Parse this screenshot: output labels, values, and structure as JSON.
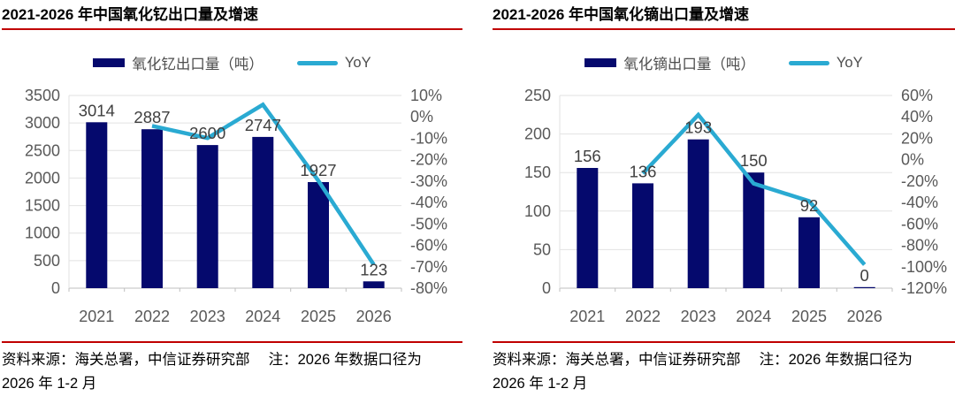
{
  "colors": {
    "bar_navy": "#05096d",
    "line_cyan": "#2aaad2",
    "accent_red": "#c00000",
    "grid": "#e2e2e2",
    "axis": "#bfbfbf",
    "tick_text": "#595959",
    "data_label_text": "#3f3f3f"
  },
  "panels": [
    {
      "title": "2021-2026 年中国氧化钇出口量及增速",
      "legend": {
        "bar_label": "氧化钇出口量（吨）",
        "line_label": "YoY"
      },
      "source_line1": "资料来源：海关总署，中信证券研究部　 注：2026 年数据口径为",
      "source_line2": "2026 年 1-2 月"
    },
    {
      "title": "2021-2026 年中国氧化镝出口量及增速",
      "legend": {
        "bar_label": "氧化镝出口量（吨）",
        "line_label": "YoY"
      },
      "source_line1": "资料来源：海关总署，中信证券研究部　 注：2026 年数据口径为",
      "source_line2": "2026 年 1-2 月"
    }
  ],
  "chart_data": [
    {
      "type": "bar+line",
      "title": "2021-2026 年中国氧化钇出口量及增速",
      "categories": [
        "2021",
        "2022",
        "2023",
        "2024",
        "2025",
        "2026"
      ],
      "series": [
        {
          "name": "氧化钇出口量（吨）",
          "type": "bar",
          "axis": "left",
          "values": [
            3014,
            2887,
            2600,
            2747,
            1927,
            123
          ],
          "data_labels": true
        },
        {
          "name": "YoY",
          "type": "line",
          "axis": "right",
          "unit": "%",
          "values": [
            null,
            -4.2,
            -9.9,
            5.7,
            -29.8,
            -69
          ]
        }
      ],
      "left_axis": {
        "min": 0,
        "max": 3500,
        "step": 500
      },
      "right_axis": {
        "min": -80,
        "max": 10,
        "step": 10,
        "unit": "%"
      },
      "grid": true,
      "legend_position": "top"
    },
    {
      "type": "bar+line",
      "title": "2021-2026 年中国氧化镝出口量及增速",
      "categories": [
        "2021",
        "2022",
        "2023",
        "2024",
        "2025",
        "2026"
      ],
      "series": [
        {
          "name": "氧化镝出口量（吨）",
          "type": "bar",
          "axis": "left",
          "values": [
            156,
            136,
            193,
            150,
            92,
            0
          ],
          "data_labels": true
        },
        {
          "name": "YoY",
          "type": "line",
          "axis": "right",
          "unit": "%",
          "values": [
            null,
            -12.8,
            41.9,
            -22.3,
            -38.7,
            -98
          ]
        }
      ],
      "left_axis": {
        "min": 0,
        "max": 250,
        "step": 50
      },
      "right_axis": {
        "min": -120,
        "max": 60,
        "step": 20,
        "unit": "%"
      },
      "grid": true,
      "legend_position": "top"
    }
  ]
}
